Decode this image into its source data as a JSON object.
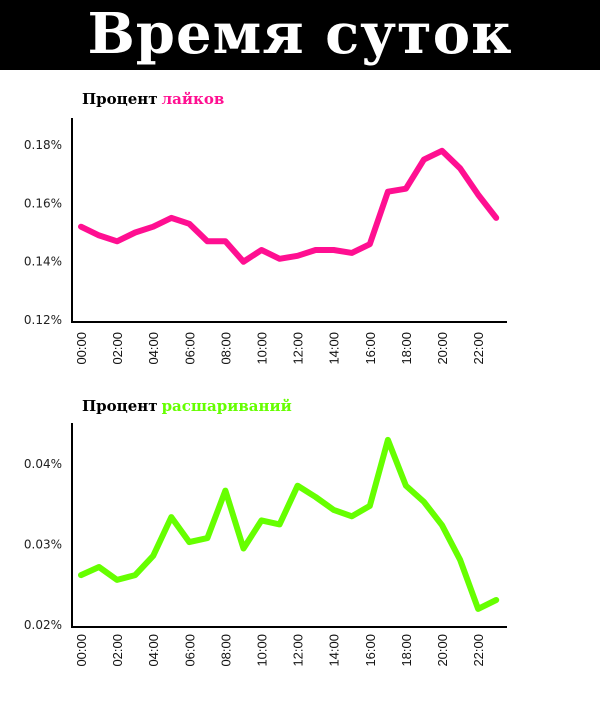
{
  "page": {
    "title": "Время суток"
  },
  "charts": {
    "likes": {
      "title_prefix": "Процент",
      "title_accent": "лайков",
      "color": "#ff0f91"
    },
    "shares": {
      "title_prefix": "Процент",
      "title_accent": "расшариваний",
      "color": "#66ff00"
    }
  },
  "chart_data": [
    {
      "type": "line",
      "title": "Процент лайков",
      "xlabel": "",
      "ylabel": "",
      "x": [
        "00:00",
        "01:00",
        "02:00",
        "03:00",
        "04:00",
        "05:00",
        "06:00",
        "07:00",
        "08:00",
        "09:00",
        "10:00",
        "11:00",
        "12:00",
        "13:00",
        "14:00",
        "15:00",
        "16:00",
        "17:00",
        "18:00",
        "19:00",
        "20:00",
        "21:00",
        "22:00",
        "23:00"
      ],
      "x_tick_labels": [
        "00:00",
        "02:00",
        "04:00",
        "06:00",
        "08:00",
        "10:00",
        "12:00",
        "14:00",
        "16:00",
        "18:00",
        "20:00",
        "22:00"
      ],
      "y_tick_labels": [
        "0.12%",
        "0.14%",
        "0.16%",
        "0.18%"
      ],
      "ylim": [
        0.12,
        0.18
      ],
      "unit": "%",
      "grid": false,
      "series": [
        {
          "name": "Процент лайков",
          "color": "#ff0f91",
          "values": [
            0.152,
            0.149,
            0.147,
            0.15,
            0.152,
            0.155,
            0.153,
            0.147,
            0.147,
            0.14,
            0.144,
            0.141,
            0.142,
            0.144,
            0.144,
            0.143,
            0.146,
            0.164,
            0.165,
            0.175,
            0.178,
            0.172,
            0.163,
            0.155
          ]
        }
      ]
    },
    {
      "type": "line",
      "title": "Процент расшариваний",
      "xlabel": "",
      "ylabel": "",
      "x": [
        "00:00",
        "01:00",
        "02:00",
        "03:00",
        "04:00",
        "05:00",
        "06:00",
        "07:00",
        "08:00",
        "09:00",
        "10:00",
        "11:00",
        "12:00",
        "13:00",
        "14:00",
        "15:00",
        "16:00",
        "17:00",
        "18:00",
        "19:00",
        "20:00",
        "21:00",
        "22:00",
        "23:00"
      ],
      "x_tick_labels": [
        "00:00",
        "02:00",
        "04:00",
        "06:00",
        "08:00",
        "10:00",
        "12:00",
        "14:00",
        "16:00",
        "18:00",
        "20:00",
        "22:00"
      ],
      "y_tick_labels": [
        "0.02%",
        "0.03%",
        "0.04%"
      ],
      "ylim": [
        0.02,
        0.04
      ],
      "unit": "%",
      "grid": false,
      "series": [
        {
          "name": "Процент расшариваний",
          "color": "#66ff00",
          "values": [
            0.0262,
            0.0272,
            0.0256,
            0.0262,
            0.0286,
            0.0334,
            0.0303,
            0.0308,
            0.0367,
            0.0295,
            0.033,
            0.0325,
            0.0373,
            0.0359,
            0.0343,
            0.0335,
            0.0348,
            0.043,
            0.0373,
            0.0353,
            0.0324,
            0.0281,
            0.022,
            0.0231
          ]
        }
      ]
    }
  ]
}
